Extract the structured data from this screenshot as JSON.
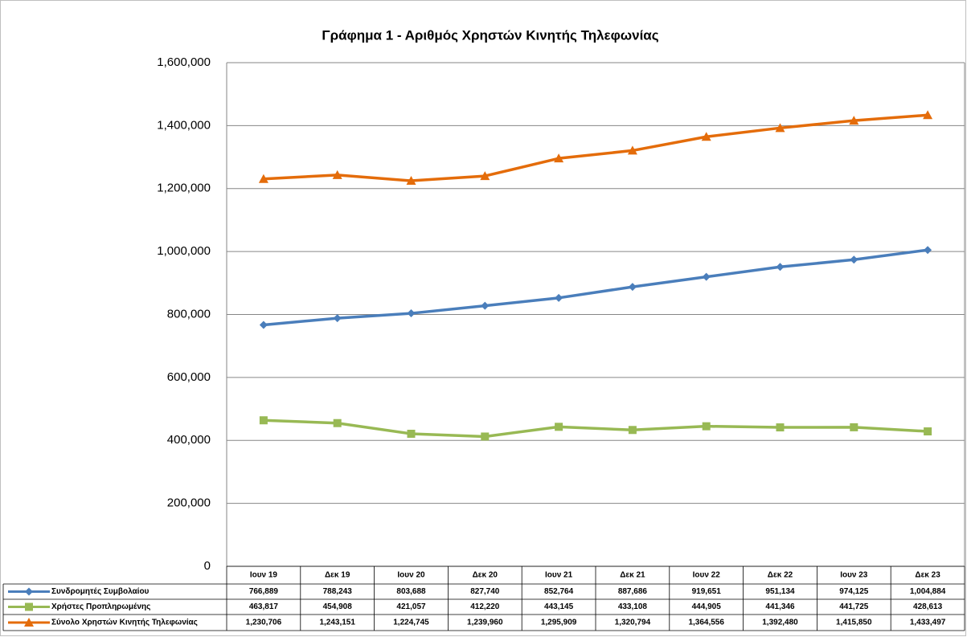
{
  "chart_data": {
    "type": "line",
    "title": "Γράφημα 1 - Αριθμός Χρηστών Κινητής Τηλεφωνίας",
    "categories": [
      "Ιουν 19",
      "Δεκ 19",
      "Ιουν 20",
      "Δεκ 20",
      "Ιουν 21",
      "Δεκ 21",
      "Ιουν 22",
      "Δεκ 22",
      "Ιουν 23",
      "Δεκ 23"
    ],
    "series": [
      {
        "name": "Συνδρομητές Συμβολαίου",
        "color": "#4a7ebb",
        "marker": "diamond",
        "values": [
          766889,
          788243,
          803688,
          827740,
          852764,
          887686,
          919651,
          951134,
          974125,
          1004884
        ],
        "value_labels": [
          "766,889",
          "788,243",
          "803,688",
          "827,740",
          "852,764",
          "887,686",
          "919,651",
          "951,134",
          "974,125",
          "1,004,884"
        ]
      },
      {
        "name": "Χρήστες Προπληρωμένης",
        "color": "#98b954",
        "marker": "square",
        "values": [
          463817,
          454908,
          421057,
          412220,
          443145,
          433108,
          444905,
          441346,
          441725,
          428613
        ],
        "value_labels": [
          "463,817",
          "454,908",
          "421,057",
          "412,220",
          "443,145",
          "433,108",
          "444,905",
          "441,346",
          "441,725",
          "428,613"
        ]
      },
      {
        "name": "Σύνολο Χρηστών Κινητής Τηλεφωνίας",
        "color": "#e46c0a",
        "marker": "triangle",
        "values": [
          1230706,
          1243151,
          1224745,
          1239960,
          1295909,
          1320794,
          1364556,
          1392480,
          1415850,
          1433497
        ],
        "value_labels": [
          "1,230,706",
          "1,243,151",
          "1,224,745",
          "1,239,960",
          "1,295,909",
          "1,320,794",
          "1,364,556",
          "1,392,480",
          "1,415,850",
          "1,433,497"
        ]
      }
    ],
    "ylim": [
      0,
      1600000
    ],
    "yticks": [
      0,
      {
        "value": 200000,
        "label": "200,000"
      },
      {
        "value": 400000,
        "label": "400,000"
      },
      {
        "value": 600000,
        "label": "600,000"
      },
      {
        "value": 800000,
        "label": "800,000"
      },
      {
        "value": 1000000,
        "label": "1,000,000"
      },
      {
        "value": 1200000,
        "label": "1,200,000"
      },
      {
        "value": 1400000,
        "label": "1,400,000"
      },
      {
        "value": 1600000,
        "label": "1,600,000"
      }
    ],
    "grid": true
  }
}
